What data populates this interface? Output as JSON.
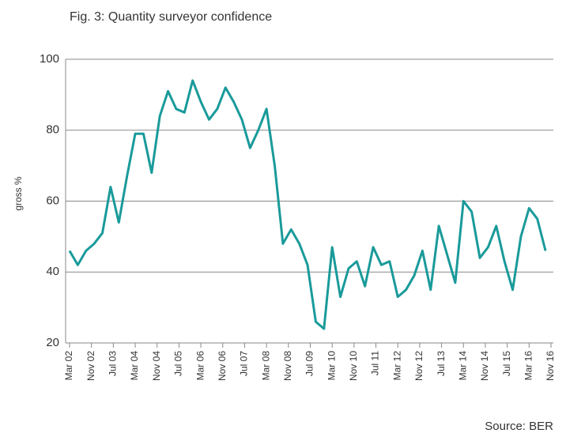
{
  "chart_data": {
    "type": "line",
    "title": "Fig. 3: Quantity surveyor confidence",
    "ylabel": "gross %",
    "source": "Source: BER",
    "x": [
      0,
      3,
      6,
      9,
      12,
      15,
      18,
      21,
      24,
      27,
      30,
      33,
      36,
      39,
      42,
      45,
      48,
      51,
      54,
      57,
      60,
      63,
      66,
      69,
      72,
      75,
      78,
      81,
      84,
      87,
      90,
      93,
      96,
      99,
      102,
      105,
      108,
      111,
      114,
      117,
      120,
      123,
      126,
      129,
      132,
      135,
      138,
      141,
      144,
      147,
      150,
      153,
      156,
      159,
      162,
      165,
      168,
      171,
      174
    ],
    "series": [
      {
        "name": "gross %",
        "color": "#1a9a9a",
        "values": [
          46,
          42,
          46,
          48,
          51,
          64,
          54,
          67,
          79,
          79,
          68,
          84,
          91,
          86,
          85,
          94,
          88,
          83,
          86,
          92,
          88,
          83,
          75,
          80,
          86,
          70,
          48,
          52,
          48,
          42,
          26,
          24,
          47,
          33,
          41,
          43,
          36,
          47,
          42,
          43,
          33,
          35,
          39,
          46,
          35,
          53,
          45,
          37,
          60,
          57,
          44,
          47,
          53,
          43,
          35,
          50,
          58,
          55,
          46
        ]
      }
    ],
    "xlim": [
      0,
      176
    ],
    "xticks": [
      {
        "value": 0,
        "label": "Mar 02"
      },
      {
        "value": 8,
        "label": "Nov 02"
      },
      {
        "value": 16,
        "label": "Jul 03"
      },
      {
        "value": 24,
        "label": "Mar 04"
      },
      {
        "value": 32,
        "label": "Nov 04"
      },
      {
        "value": 40,
        "label": "Jul 05"
      },
      {
        "value": 48,
        "label": "Mar 06"
      },
      {
        "value": 56,
        "label": "Nov 06"
      },
      {
        "value": 64,
        "label": "Jul 07"
      },
      {
        "value": 72,
        "label": "Mar 08"
      },
      {
        "value": 80,
        "label": "Nov 08"
      },
      {
        "value": 88,
        "label": "Jul 09"
      },
      {
        "value": 96,
        "label": "Mar 10"
      },
      {
        "value": 104,
        "label": "Nov 10"
      },
      {
        "value": 112,
        "label": "Jul 11"
      },
      {
        "value": 120,
        "label": "Mar 12"
      },
      {
        "value": 128,
        "label": "Nov 12"
      },
      {
        "value": 136,
        "label": "Jul 13"
      },
      {
        "value": 144,
        "label": "Mar 14"
      },
      {
        "value": 152,
        "label": "Nov 14"
      },
      {
        "value": 160,
        "label": "Jul 15"
      },
      {
        "value": 168,
        "label": "Mar 16"
      },
      {
        "value": 176,
        "label": "Nov 16"
      }
    ],
    "ylim": [
      20,
      100
    ],
    "yticks": [
      20,
      40,
      60,
      80,
      100
    ],
    "grid": true
  }
}
